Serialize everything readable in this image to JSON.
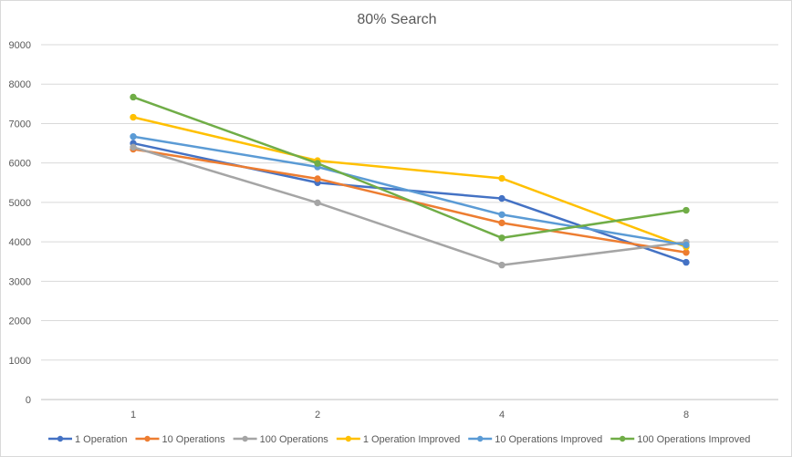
{
  "chart_data": {
    "type": "line",
    "title": "80% Search",
    "xlabel": "",
    "ylabel": "",
    "categories": [
      "1",
      "2",
      "4",
      "8"
    ],
    "ylim": [
      0,
      9000
    ],
    "yticks": [
      0,
      1000,
      2000,
      3000,
      4000,
      5000,
      6000,
      7000,
      8000,
      9000
    ],
    "grid": true,
    "legend_position": "bottom",
    "series": [
      {
        "name": "1 Operation",
        "color": "#4472c4",
        "values": [
          6500,
          5500,
          5100,
          3480
        ]
      },
      {
        "name": "10 Operations",
        "color": "#ed7d31",
        "values": [
          6350,
          5600,
          4480,
          3730
        ]
      },
      {
        "name": "100 Operations",
        "color": "#a5a5a5",
        "values": [
          6400,
          4990,
          3410,
          3990
        ]
      },
      {
        "name": "1 Operation Improved",
        "color": "#ffc000",
        "values": [
          7160,
          6060,
          5610,
          3870
        ]
      },
      {
        "name": "10 Operations Improved",
        "color": "#5b9bd5",
        "values": [
          6670,
          5900,
          4690,
          3920
        ]
      },
      {
        "name": "100 Operations Improved",
        "color": "#70ad47",
        "values": [
          7670,
          5990,
          4100,
          4800
        ]
      }
    ]
  }
}
